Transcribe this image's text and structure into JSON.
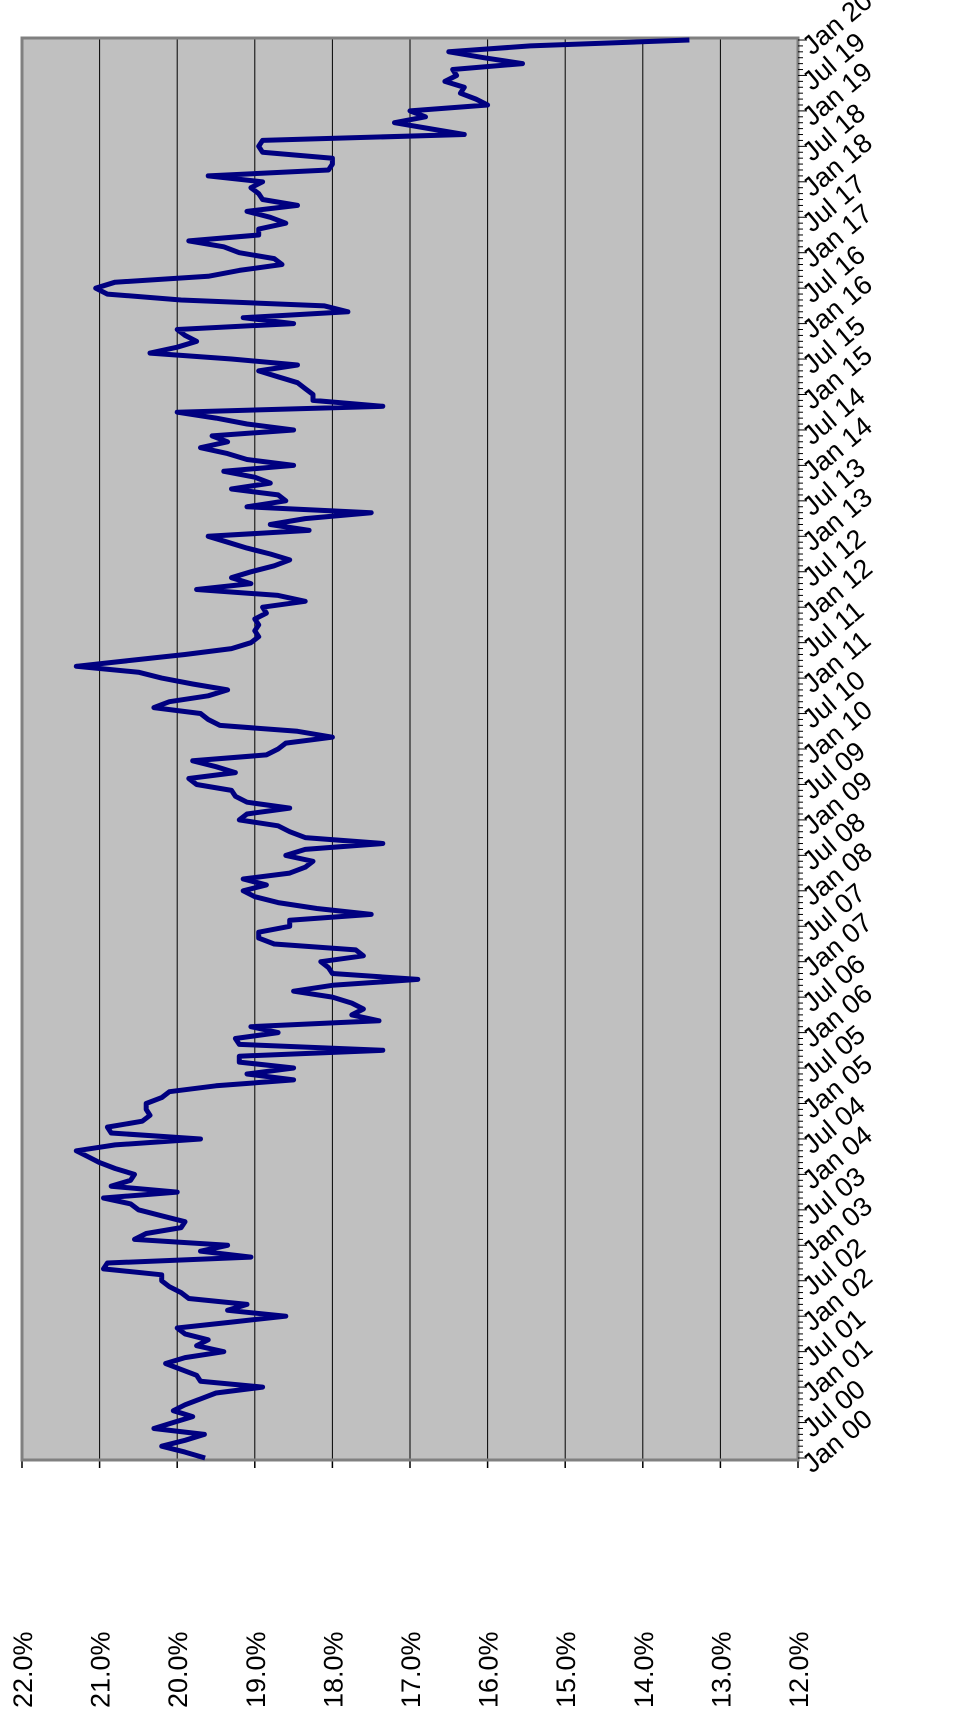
{
  "chart_data": {
    "type": "line",
    "categories": [
      "Jan 00",
      null,
      null,
      null,
      null,
      null,
      "Jul 00",
      null,
      null,
      null,
      null,
      null,
      "Jan 01",
      null,
      null,
      null,
      null,
      null,
      "Jul 01",
      null,
      null,
      null,
      null,
      null,
      "Jan 02",
      null,
      null,
      null,
      null,
      null,
      "Jul 02",
      null,
      null,
      null,
      null,
      null,
      "Jan 03",
      null,
      null,
      null,
      null,
      null,
      "Jul 03",
      null,
      null,
      null,
      null,
      null,
      "Jan 04",
      null,
      null,
      null,
      null,
      null,
      "Jul 04",
      null,
      null,
      null,
      null,
      null,
      "Jan 05",
      null,
      null,
      null,
      null,
      null,
      "Jul 05",
      null,
      null,
      null,
      null,
      null,
      "Jan 06",
      null,
      null,
      null,
      null,
      null,
      "Jul 06",
      null,
      null,
      null,
      null,
      null,
      "Jan 07",
      null,
      null,
      null,
      null,
      null,
      "Jul 07",
      null,
      null,
      null,
      null,
      null,
      "Jan 08",
      null,
      null,
      null,
      null,
      null,
      "Jul 08",
      null,
      null,
      null,
      null,
      null,
      "Jan 09",
      null,
      null,
      null,
      null,
      null,
      "Jul 09",
      null,
      null,
      null,
      null,
      null,
      "Jan 10",
      null,
      null,
      null,
      null,
      null,
      "Jul 10",
      null,
      null,
      null,
      null,
      null,
      "Jan 11",
      null,
      null,
      null,
      null,
      null,
      "Jul 11",
      null,
      null,
      null,
      null,
      null,
      "Jan 12",
      null,
      null,
      null,
      null,
      null,
      "Jul 12",
      null,
      null,
      null,
      null,
      null,
      "Jan 13",
      null,
      null,
      null,
      null,
      null,
      "Jul 13",
      null,
      null,
      null,
      null,
      null,
      "Jan 14",
      null,
      null,
      null,
      null,
      null,
      "Jul 14",
      null,
      null,
      null,
      null,
      null,
      "Jan 15",
      null,
      null,
      null,
      null,
      null,
      "Jul 15",
      null,
      null,
      null,
      null,
      null,
      "Jan 16",
      null,
      null,
      null,
      null,
      null,
      "Jul 16",
      null,
      null,
      null,
      null,
      null,
      "Jan 17",
      null,
      null,
      null,
      null,
      null,
      "Jul 17",
      null,
      null,
      null,
      null,
      null,
      "Jan 18",
      null,
      null,
      null,
      null,
      null,
      "Jul 18",
      null,
      null,
      null,
      null,
      null,
      "Jan 19",
      null,
      null,
      null,
      null,
      null,
      "Jul 19",
      null,
      null,
      null,
      null,
      null,
      "Jan 20"
    ],
    "values": [
      19.64,
      19.9,
      20.2,
      19.9,
      19.65,
      20.3,
      20.05,
      19.8,
      20.05,
      19.9,
      19.7,
      19.5,
      18.9,
      19.7,
      19.75,
      19.95,
      20.15,
      19.9,
      19.4,
      19.75,
      19.6,
      19.9,
      20.0,
      19.3,
      18.6,
      19.35,
      19.1,
      19.85,
      19.95,
      20.1,
      20.2,
      20.2,
      20.95,
      20.9,
      19.05,
      19.7,
      19.35,
      20.55,
      20.4,
      19.95,
      19.9,
      20.2,
      20.5,
      20.6,
      20.95,
      20.0,
      20.85,
      20.6,
      20.55,
      20.8,
      21.0,
      21.15,
      21.3,
      20.8,
      19.7,
      20.85,
      20.9,
      20.45,
      20.35,
      20.4,
      20.4,
      20.2,
      20.1,
      19.5,
      18.5,
      19.1,
      18.5,
      19.2,
      19.2,
      17.35,
      19.2,
      19.25,
      18.7,
      19.05,
      17.4,
      17.75,
      17.6,
      17.75,
      18.0,
      18.5,
      18.0,
      16.9,
      18.0,
      18.05,
      18.15,
      17.6,
      17.7,
      18.75,
      18.95,
      18.95,
      18.55,
      18.55,
      17.5,
      18.2,
      18.7,
      19.0,
      19.15,
      18.85,
      19.15,
      18.55,
      18.35,
      18.25,
      18.6,
      18.35,
      17.35,
      18.35,
      18.55,
      18.7,
      19.2,
      19.1,
      18.55,
      19.1,
      19.25,
      19.3,
      19.75,
      19.85,
      19.25,
      19.5,
      19.8,
      18.85,
      18.7,
      18.6,
      18.0,
      18.45,
      19.45,
      19.6,
      19.7,
      20.3,
      20.1,
      19.6,
      19.35,
      19.8,
      20.2,
      20.5,
      21.3,
      20.6,
      19.9,
      19.3,
      19.05,
      18.95,
      19.0,
      18.95,
      19.0,
      18.85,
      18.9,
      18.35,
      18.7,
      19.75,
      19.05,
      19.3,
      19.05,
      18.75,
      18.55,
      18.8,
      19.1,
      19.35,
      19.6,
      18.3,
      18.8,
      18.35,
      17.5,
      19.1,
      18.6,
      18.7,
      19.3,
      18.8,
      19.0,
      19.4,
      18.5,
      19.1,
      19.35,
      19.7,
      19.35,
      19.55,
      18.5,
      19.1,
      19.5,
      20.0,
      17.35,
      18.25,
      18.25,
      18.35,
      18.45,
      18.7,
      18.95,
      18.45,
      19.3,
      20.35,
      20.0,
      19.75,
      19.9,
      20.0,
      18.5,
      19.15,
      17.8,
      18.1,
      19.95,
      20.9,
      21.05,
      20.8,
      19.6,
      19.2,
      18.65,
      18.75,
      19.2,
      19.4,
      19.85,
      18.95,
      18.95,
      18.6,
      18.8,
      19.1,
      18.45,
      18.9,
      18.95,
      19.05,
      18.9,
      19.6,
      18.05,
      18.0,
      18.0,
      18.9,
      18.95,
      18.9,
      16.3,
      16.75,
      17.2,
      16.8,
      17.0,
      16.0,
      16.15,
      16.35,
      16.3,
      16.55,
      16.4,
      16.45,
      15.55,
      16.05,
      16.5,
      15.45,
      13.4
    ],
    "color": "#000080",
    "ylim": [
      12,
      22
    ],
    "yticks": [
      {
        "value": 22,
        "label": "22.0%"
      },
      {
        "value": 21,
        "label": "21.0%"
      },
      {
        "value": 20,
        "label": "20.0%"
      },
      {
        "value": 19,
        "label": "19.0%"
      },
      {
        "value": 18,
        "label": "18.0%"
      },
      {
        "value": 17,
        "label": "17.0%"
      },
      {
        "value": 16,
        "label": "16.0%"
      },
      {
        "value": 15,
        "label": "15.0%"
      },
      {
        "value": 14,
        "label": "14.0%"
      },
      {
        "value": 13,
        "label": "13.0%"
      },
      {
        "value": 12,
        "label": "12.0%"
      }
    ],
    "grid": true
  }
}
